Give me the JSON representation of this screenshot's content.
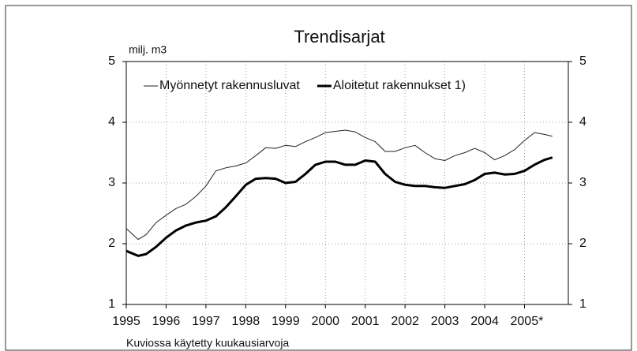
{
  "chart_data": {
    "type": "line",
    "title": "Trendisarjat",
    "ylabel": "milj. m3",
    "note": "Kuviossa käytetty kuukausiarvoja",
    "x": [
      1995.0,
      1995.3,
      1995.5,
      1995.75,
      1996.0,
      1996.25,
      1996.5,
      1996.75,
      1997.0,
      1997.25,
      1997.5,
      1997.75,
      1998.0,
      1998.25,
      1998.5,
      1998.75,
      1999.0,
      1999.25,
      1999.5,
      1999.75,
      2000.0,
      2000.25,
      2000.5,
      2000.75,
      2001.0,
      2001.25,
      2001.5,
      2001.75,
      2002.0,
      2002.25,
      2002.5,
      2002.75,
      2003.0,
      2003.25,
      2003.5,
      2003.75,
      2004.0,
      2004.25,
      2004.5,
      2004.75,
      2005.0,
      2005.25,
      2005.5,
      2005.7
    ],
    "series": [
      {
        "name": "Myönnetyt rakennusluvat",
        "color": "#222222",
        "width": 1,
        "values": [
          2.25,
          2.07,
          2.15,
          2.35,
          2.47,
          2.58,
          2.65,
          2.78,
          2.95,
          3.2,
          3.25,
          3.28,
          3.33,
          3.45,
          3.58,
          3.57,
          3.62,
          3.6,
          3.68,
          3.75,
          3.83,
          3.85,
          3.87,
          3.84,
          3.75,
          3.68,
          3.52,
          3.52,
          3.58,
          3.62,
          3.5,
          3.4,
          3.37,
          3.45,
          3.5,
          3.57,
          3.5,
          3.38,
          3.45,
          3.55,
          3.7,
          3.83,
          3.8,
          3.77
        ]
      },
      {
        "name": "Aloitetut rakennukset 1)",
        "color": "#000000",
        "width": 3,
        "values": [
          1.88,
          1.8,
          1.83,
          1.95,
          2.1,
          2.22,
          2.3,
          2.35,
          2.38,
          2.45,
          2.6,
          2.78,
          2.97,
          3.07,
          3.08,
          3.07,
          3.0,
          3.02,
          3.15,
          3.3,
          3.35,
          3.35,
          3.3,
          3.3,
          3.37,
          3.35,
          3.15,
          3.02,
          2.97,
          2.95,
          2.95,
          2.93,
          2.92,
          2.95,
          2.98,
          3.05,
          3.15,
          3.17,
          3.14,
          3.15,
          3.2,
          3.3,
          3.38,
          3.42
        ]
      }
    ],
    "xlim": [
      1995,
      2006.1
    ],
    "xticks": [
      1995,
      1996,
      1997,
      1998,
      1999,
      2000,
      2001,
      2002,
      2003,
      2004,
      {
        "value": 2005,
        "label": "2005*"
      }
    ],
    "ylim": [
      1,
      5
    ],
    "yticks": [
      1,
      2,
      3,
      4,
      5
    ],
    "y2lim": [
      1,
      5
    ],
    "y2ticks": [
      1,
      2,
      3,
      4,
      5
    ],
    "grid": true,
    "legend": "top-left"
  }
}
